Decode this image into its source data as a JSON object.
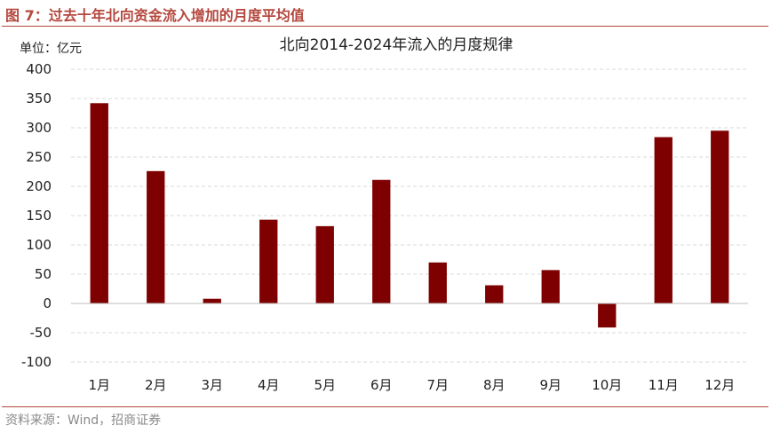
{
  "figure": {
    "header": "图 7：过去十年北向资金流入增加的月度平均值",
    "source": "资料来源：Wind，招商证券"
  },
  "chart_data": {
    "type": "bar",
    "title": "北向2014-2024年流入的月度规律",
    "unit_label": "单位：亿元",
    "categories": [
      "1月",
      "2月",
      "3月",
      "4月",
      "5月",
      "6月",
      "7月",
      "8月",
      "9月",
      "10月",
      "11月",
      "12月"
    ],
    "values": [
      342,
      226,
      8,
      143,
      132,
      211,
      70,
      31,
      57,
      -41,
      284,
      295
    ],
    "ylim": [
      -100,
      400
    ],
    "yticks": [
      400,
      350,
      300,
      250,
      200,
      150,
      100,
      50,
      0,
      -50,
      -100
    ],
    "ytick_labels": [
      "400",
      "350",
      "300",
      "250",
      "200",
      "150",
      "100",
      "50",
      "0",
      "-50",
      "-100"
    ],
    "grid": true,
    "bar_color": "#7f0000",
    "legend": "none"
  }
}
